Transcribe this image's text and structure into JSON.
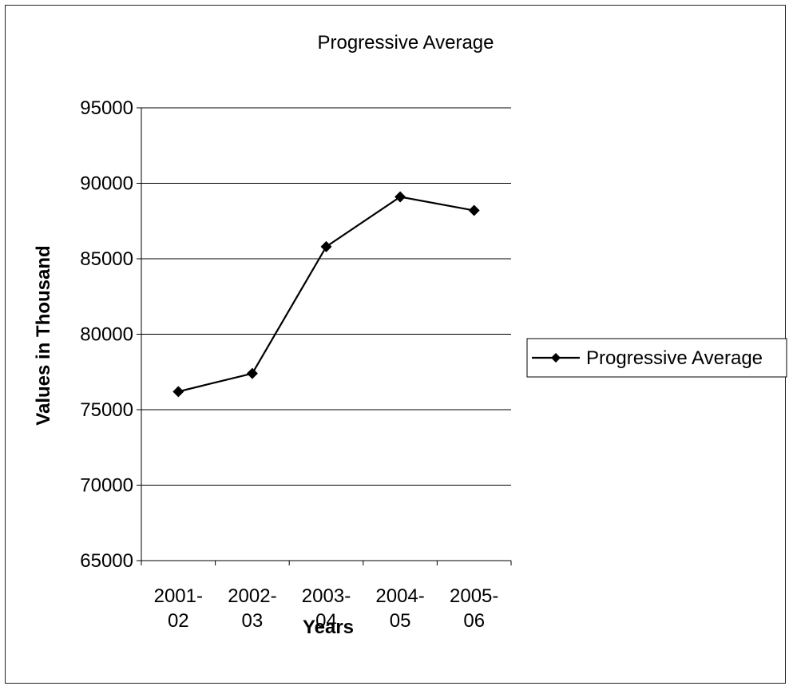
{
  "chart_data": {
    "type": "line",
    "title": "Progressive Average",
    "xlabel": "Years",
    "ylabel": "Values in Thousand",
    "categories": [
      [
        "2001-",
        "02"
      ],
      [
        "2002-",
        "03"
      ],
      [
        "2003-",
        "04"
      ],
      [
        "2004-",
        "05"
      ],
      [
        "2005-",
        "06"
      ]
    ],
    "series": [
      {
        "name": "Progressive Average",
        "values": [
          76200,
          77400,
          85800,
          89100,
          88200
        ],
        "color": "#000000",
        "marker": "diamond"
      }
    ],
    "ylim": [
      65000,
      95000
    ],
    "yticks": [
      "65000",
      "70000",
      "75000",
      "80000",
      "85000",
      "90000",
      "95000"
    ],
    "grid": true,
    "legend": "right"
  }
}
